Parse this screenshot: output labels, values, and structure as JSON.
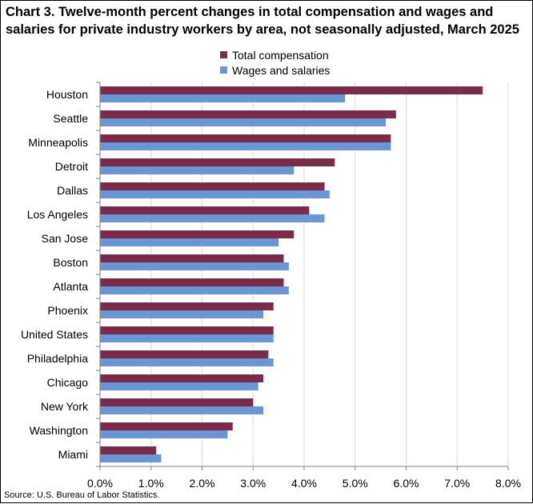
{
  "chart_data": {
    "type": "bar",
    "orientation": "horizontal",
    "title": "Chart 3. Twelve-month percent changes in total compensation and wages and salaries for private industry workers by area, not seasonally adjusted, March 2025",
    "source": "Source: U.S. Bureau of Labor Statistics.",
    "categories": [
      "Houston",
      "Seattle",
      "Minneapolis",
      "Detroit",
      "Dallas",
      "Los Angeles",
      "San Jose",
      "Boston",
      "Atlanta",
      "Phoenix",
      "United States",
      "Philadelphia",
      "Chicago",
      "New York",
      "Washington",
      "Miami"
    ],
    "series": [
      {
        "name": "Total compensation",
        "color": "#7b2c4a",
        "values": [
          7.5,
          5.8,
          5.7,
          4.6,
          4.4,
          4.1,
          3.8,
          3.6,
          3.6,
          3.4,
          3.4,
          3.3,
          3.2,
          3.0,
          2.6,
          1.1
        ]
      },
      {
        "name": "Wages and salaries",
        "color": "#6b96d6",
        "values": [
          4.8,
          5.6,
          5.7,
          3.8,
          4.5,
          4.4,
          3.5,
          3.7,
          3.7,
          3.2,
          3.4,
          3.4,
          3.1,
          3.2,
          2.5,
          1.2
        ]
      }
    ],
    "xlim": [
      0,
      8
    ],
    "xticks": [
      "0.0%",
      "1.0%",
      "2.0%",
      "3.0%",
      "4.0%",
      "5.0%",
      "6.0%",
      "7.0%",
      "8.0%"
    ],
    "xtick_values": [
      0,
      1,
      2,
      3,
      4,
      5,
      6,
      7,
      8
    ],
    "xlabel": "",
    "ylabel": "",
    "grid": "vertical",
    "gridline_color": "#d9d9d9",
    "legend_position": "top"
  }
}
